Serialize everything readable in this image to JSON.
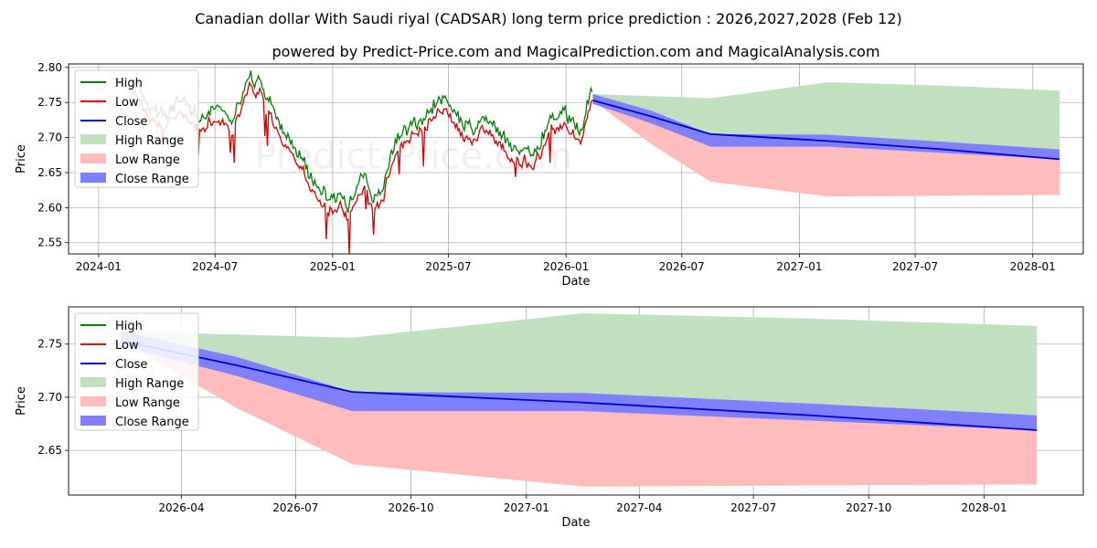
{
  "title": "Canadian dollar With Saudi riyal (CADSAR) long term price prediction : 2026,2027,2028 (Feb 12)",
  "subtitle": "powered by Predict-Price.com and MagicalPrediction.com and MagicalAnalysis.com",
  "watermark": "Predict-Price.com",
  "colors": {
    "high": "#008000",
    "low": "#d40000",
    "close": "#0000cc",
    "high_range": "#c0e0c0",
    "low_range": "#ffbcbc",
    "close_range": "#8080ff"
  },
  "chart_data": [
    {
      "type": "line",
      "name": "full-history",
      "xlabel": "Date",
      "ylabel": "Price",
      "xlim": [
        "2023-11-15",
        "2028-03-20"
      ],
      "ylim": [
        2.534,
        2.805
      ],
      "x_ticks": [
        "2024-01",
        "2024-07",
        "2025-01",
        "2025-07",
        "2026-01",
        "2026-07",
        "2027-01",
        "2027-07",
        "2028-01"
      ],
      "y_ticks": [
        2.55,
        2.6,
        2.65,
        2.7,
        2.75,
        2.8
      ],
      "legend": {
        "position": "top-left",
        "entries": [
          "High",
          "Low",
          "Close",
          "High Range",
          "Low Range",
          "Close Range"
        ]
      },
      "history_anchors": {
        "dates": [
          "2024-02-20",
          "2024-03-20",
          "2024-04-10",
          "2024-05-10",
          "2024-06-05",
          "2024-06-25",
          "2024-07-25",
          "2024-08-10",
          "2024-08-25",
          "2024-09-10",
          "2024-09-25",
          "2024-10-10",
          "2024-10-25",
          "2024-11-10",
          "2024-11-25",
          "2024-12-10",
          "2024-12-25",
          "2025-01-10",
          "2025-01-25",
          "2025-02-05",
          "2025-02-20",
          "2025-03-05",
          "2025-03-20",
          "2025-04-10",
          "2025-04-25",
          "2025-05-10",
          "2025-05-25",
          "2025-06-10",
          "2025-06-25",
          "2025-07-10",
          "2025-07-25",
          "2025-08-10",
          "2025-08-25",
          "2025-09-10",
          "2025-09-25",
          "2025-10-10",
          "2025-10-25",
          "2025-11-10",
          "2025-11-25",
          "2025-12-10",
          "2025-12-25",
          "2026-01-10",
          "2026-01-25",
          "2026-02-05",
          "2026-02-12"
        ],
        "values": [
          2.775,
          2.73,
          2.72,
          2.745,
          2.72,
          2.735,
          2.715,
          2.745,
          2.775,
          2.77,
          2.74,
          2.705,
          2.69,
          2.665,
          2.635,
          2.615,
          2.605,
          2.61,
          2.595,
          2.62,
          2.64,
          2.6,
          2.625,
          2.69,
          2.705,
          2.715,
          2.72,
          2.74,
          2.745,
          2.735,
          2.71,
          2.705,
          2.715,
          2.71,
          2.69,
          2.665,
          2.675,
          2.67,
          2.69,
          2.72,
          2.73,
          2.71,
          2.705,
          2.75,
          2.765
        ]
      },
      "forecast": {
        "dates": [
          "2026-02-12",
          "2026-05-15",
          "2026-08-15",
          "2027-02-15",
          "2027-08-15",
          "2028-02-12"
        ],
        "close": [
          2.753,
          2.73,
          2.705,
          2.695,
          2.683,
          2.669
        ],
        "close_range_upper": [
          2.762,
          2.738,
          2.705,
          2.704,
          2.694,
          2.683
        ],
        "close_range_lower": [
          2.748,
          2.72,
          2.687,
          2.687,
          2.678,
          2.669
        ],
        "high_range_upper": [
          2.762,
          2.759,
          2.756,
          2.779,
          2.774,
          2.767
        ],
        "low_range_lower": [
          2.753,
          2.69,
          2.637,
          2.616,
          2.617,
          2.618
        ]
      }
    },
    {
      "type": "line",
      "name": "forecast-zoom",
      "xlabel": "Date",
      "ylabel": "Price",
      "xlim": [
        "2026-01-01",
        "2028-03-20"
      ],
      "ylim": [
        2.608,
        2.785
      ],
      "x_ticks": [
        "2026-04",
        "2026-07",
        "2026-10",
        "2027-01",
        "2027-04",
        "2027-07",
        "2027-10",
        "2028-01"
      ],
      "y_ticks": [
        2.65,
        2.7,
        2.75
      ],
      "legend": {
        "position": "top-left",
        "entries": [
          "High",
          "Low",
          "Close",
          "High Range",
          "Low Range",
          "Close Range"
        ]
      }
    }
  ]
}
